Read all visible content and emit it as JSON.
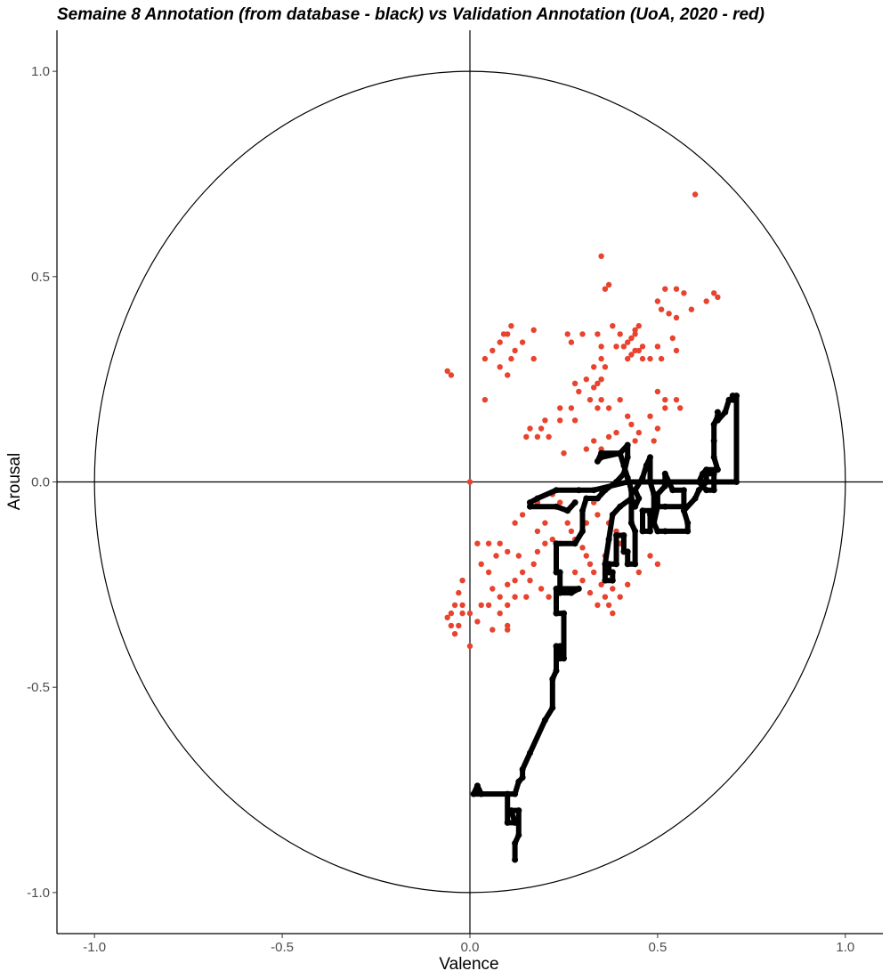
{
  "chart_data": {
    "type": "scatter",
    "title": "Semaine 8 Annotation (from database - black) vs Validation Annotation (UoA, 2020 - red)",
    "xlabel": "Valence",
    "ylabel": "Arousal",
    "xlim": [
      -1.1,
      1.1
    ],
    "ylim": [
      -1.1,
      1.1
    ],
    "x_ticks": [
      -1.0,
      -0.5,
      0.0,
      0.5,
      1.0
    ],
    "x_tick_labels": [
      "-1.0",
      "-0.5",
      "0.0",
      "0.5",
      "1.0"
    ],
    "y_ticks": [
      -1.0,
      -0.5,
      0.0,
      0.5,
      1.0
    ],
    "y_tick_labels": [
      "-1.0",
      "-0.5",
      "0.0",
      "0.5",
      "1.0"
    ],
    "grid": false,
    "legend": "none",
    "reference": {
      "unit_circle": true,
      "zero_lines": true
    },
    "series": [
      {
        "color": "#e8432e",
        "mode": "points",
        "points": [
          [
            0.6,
            0.7
          ],
          [
            0.35,
            0.55
          ],
          [
            0.37,
            0.48
          ],
          [
            0.36,
            0.47
          ],
          [
            0.52,
            0.47
          ],
          [
            0.55,
            0.47
          ],
          [
            0.57,
            0.46
          ],
          [
            0.65,
            0.46
          ],
          [
            0.66,
            0.45
          ],
          [
            0.63,
            0.44
          ],
          [
            0.5,
            0.44
          ],
          [
            0.51,
            0.42
          ],
          [
            0.59,
            0.42
          ],
          [
            0.53,
            0.41
          ],
          [
            0.55,
            0.4
          ],
          [
            0.45,
            0.38
          ],
          [
            0.44,
            0.37
          ],
          [
            0.44,
            0.36
          ],
          [
            0.43,
            0.35
          ],
          [
            0.42,
            0.34
          ],
          [
            0.41,
            0.33
          ],
          [
            0.46,
            0.33
          ],
          [
            0.45,
            0.32
          ],
          [
            0.44,
            0.32
          ],
          [
            0.43,
            0.31
          ],
          [
            0.42,
            0.3
          ],
          [
            0.46,
            0.3
          ],
          [
            0.39,
            0.33
          ],
          [
            0.38,
            0.38
          ],
          [
            0.4,
            0.36
          ],
          [
            0.34,
            0.36
          ],
          [
            0.3,
            0.36
          ],
          [
            0.26,
            0.36
          ],
          [
            0.27,
            0.34
          ],
          [
            0.35,
            0.33
          ],
          [
            0.35,
            0.3
          ],
          [
            0.33,
            0.28
          ],
          [
            0.36,
            0.28
          ],
          [
            0.35,
            0.25
          ],
          [
            0.34,
            0.24
          ],
          [
            0.33,
            0.23
          ],
          [
            0.31,
            0.25
          ],
          [
            0.28,
            0.24
          ],
          [
            0.29,
            0.22
          ],
          [
            0.32,
            0.2
          ],
          [
            0.35,
            0.2
          ],
          [
            0.37,
            0.18
          ],
          [
            0.34,
            0.18
          ],
          [
            0.4,
            0.2
          ],
          [
            0.48,
            0.3
          ],
          [
            0.5,
            0.33
          ],
          [
            0.51,
            0.3
          ],
          [
            0.54,
            0.35
          ],
          [
            0.55,
            0.32
          ],
          [
            0.5,
            0.22
          ],
          [
            0.52,
            0.2
          ],
          [
            0.55,
            0.2
          ],
          [
            0.56,
            0.18
          ],
          [
            0.52,
            0.18
          ],
          [
            0.48,
            0.16
          ],
          [
            0.42,
            0.16
          ],
          [
            0.43,
            0.14
          ],
          [
            0.45,
            0.12
          ],
          [
            0.44,
            0.1
          ],
          [
            0.49,
            0.1
          ],
          [
            0.5,
            0.13
          ],
          [
            0.39,
            0.12
          ],
          [
            0.37,
            0.11
          ],
          [
            0.33,
            0.1
          ],
          [
            0.35,
            0.08
          ],
          [
            0.31,
            0.08
          ],
          [
            0.28,
            0.15
          ],
          [
            0.24,
            0.15
          ],
          [
            0.2,
            0.15
          ],
          [
            0.19,
            0.13
          ],
          [
            0.16,
            0.13
          ],
          [
            0.15,
            0.11
          ],
          [
            0.18,
            0.11
          ],
          [
            0.21,
            0.11
          ],
          [
            0.25,
            0.07
          ],
          [
            0.24,
            0.18
          ],
          [
            0.27,
            0.18
          ],
          [
            0.11,
            0.3
          ],
          [
            0.12,
            0.32
          ],
          [
            0.1,
            0.36
          ],
          [
            0.09,
            0.36
          ],
          [
            0.08,
            0.34
          ],
          [
            0.06,
            0.32
          ],
          [
            0.04,
            0.3
          ],
          [
            -0.06,
            0.27
          ],
          [
            -0.05,
            0.26
          ],
          [
            0.04,
            0.2
          ],
          [
            0.17,
            0.3
          ],
          [
            0.08,
            0.28
          ],
          [
            0.1,
            0.26
          ],
          [
            0.14,
            0.34
          ],
          [
            0.17,
            0.37
          ],
          [
            0.11,
            0.38
          ],
          [
            0.0,
            0.0
          ],
          [
            0.0,
            -0.4
          ],
          [
            0.02,
            -0.15
          ],
          [
            0.05,
            -0.15
          ],
          [
            0.03,
            -0.2
          ],
          [
            0.05,
            -0.22
          ],
          [
            0.06,
            -0.26
          ],
          [
            0.08,
            -0.28
          ],
          [
            0.1,
            -0.25
          ],
          [
            0.12,
            -0.24
          ],
          [
            0.14,
            -0.22
          ],
          [
            0.16,
            -0.24
          ],
          [
            0.17,
            -0.2
          ],
          [
            0.18,
            -0.17
          ],
          [
            0.2,
            -0.15
          ],
          [
            0.22,
            -0.14
          ],
          [
            0.24,
            -0.15
          ],
          [
            0.27,
            -0.12
          ],
          [
            0.28,
            -0.14
          ],
          [
            0.3,
            -0.16
          ],
          [
            0.31,
            -0.18
          ],
          [
            0.32,
            -0.2
          ],
          [
            0.33,
            -0.22
          ],
          [
            0.35,
            -0.25
          ],
          [
            0.36,
            -0.28
          ],
          [
            0.37,
            -0.3
          ],
          [
            0.38,
            -0.26
          ],
          [
            0.34,
            -0.3
          ],
          [
            0.32,
            -0.27
          ],
          [
            0.3,
            -0.24
          ],
          [
            0.28,
            -0.22
          ],
          [
            0.31,
            -0.1
          ],
          [
            0.33,
            -0.05
          ],
          [
            0.35,
            -0.02
          ],
          [
            0.34,
            -0.08
          ],
          [
            0.37,
            -0.1
          ],
          [
            0.39,
            -0.12
          ],
          [
            0.4,
            -0.15
          ],
          [
            0.36,
            -0.18
          ],
          [
            0.3,
            -0.08
          ],
          [
            0.26,
            -0.1
          ],
          [
            0.24,
            -0.05
          ],
          [
            0.22,
            -0.03
          ],
          [
            0.18,
            -0.05
          ],
          [
            0.14,
            -0.08
          ],
          [
            0.12,
            -0.1
          ],
          [
            0.13,
            -0.18
          ],
          [
            0.1,
            -0.17
          ],
          [
            0.19,
            -0.26
          ],
          [
            0.21,
            -0.28
          ],
          [
            0.15,
            -0.28
          ],
          [
            0.12,
            -0.28
          ],
          [
            0.1,
            -0.3
          ],
          [
            0.08,
            -0.32
          ],
          [
            0.06,
            -0.36
          ],
          [
            0.05,
            -0.3
          ],
          [
            0.03,
            -0.3
          ],
          [
            0.02,
            -0.34
          ],
          [
            0.0,
            -0.32
          ],
          [
            -0.02,
            -0.32
          ],
          [
            -0.04,
            -0.3
          ],
          [
            -0.05,
            -0.32
          ],
          [
            -0.06,
            -0.33
          ],
          [
            -0.05,
            -0.35
          ],
          [
            -0.04,
            -0.37
          ],
          [
            -0.03,
            -0.35
          ],
          [
            -0.02,
            -0.3
          ],
          [
            -0.03,
            -0.27
          ],
          [
            -0.02,
            -0.24
          ],
          [
            0.08,
            -0.15
          ],
          [
            0.07,
            -0.18
          ],
          [
            0.1,
            -0.35
          ],
          [
            0.1,
            -0.36
          ],
          [
            0.42,
            -0.2
          ],
          [
            0.48,
            -0.18
          ],
          [
            0.5,
            -0.2
          ],
          [
            0.45,
            -0.22
          ],
          [
            0.42,
            -0.25
          ],
          [
            0.4,
            -0.28
          ],
          [
            0.38,
            -0.32
          ],
          [
            0.18,
            -0.12
          ],
          [
            0.2,
            -0.1
          ]
        ]
      },
      {
        "color": "#000000",
        "mode": "path",
        "points": [
          [
            0.12,
            -0.92
          ],
          [
            0.12,
            -0.88
          ],
          [
            0.13,
            -0.86
          ],
          [
            0.13,
            -0.8
          ],
          [
            0.11,
            -0.8
          ],
          [
            0.12,
            -0.83
          ],
          [
            0.1,
            -0.83
          ],
          [
            0.1,
            -0.76
          ],
          [
            0.03,
            -0.76
          ],
          [
            0.02,
            -0.74
          ],
          [
            0.01,
            -0.76
          ],
          [
            0.12,
            -0.76
          ],
          [
            0.13,
            -0.73
          ],
          [
            0.14,
            -0.72
          ],
          [
            0.14,
            -0.7
          ],
          [
            0.16,
            -0.66
          ],
          [
            0.2,
            -0.58
          ],
          [
            0.22,
            -0.55
          ],
          [
            0.22,
            -0.48
          ],
          [
            0.23,
            -0.46
          ],
          [
            0.23,
            -0.4
          ],
          [
            0.24,
            -0.4
          ],
          [
            0.24,
            -0.43
          ],
          [
            0.25,
            -0.43
          ],
          [
            0.25,
            -0.32
          ],
          [
            0.23,
            -0.32
          ],
          [
            0.23,
            -0.26
          ],
          [
            0.29,
            -0.26
          ],
          [
            0.27,
            -0.27
          ],
          [
            0.24,
            -0.27
          ],
          [
            0.24,
            -0.22
          ],
          [
            0.23,
            -0.22
          ],
          [
            0.23,
            -0.15
          ],
          [
            0.28,
            -0.15
          ],
          [
            0.3,
            -0.12
          ],
          [
            0.3,
            -0.07
          ],
          [
            0.31,
            -0.04
          ],
          [
            0.34,
            -0.04
          ],
          [
            0.36,
            -0.02
          ],
          [
            0.39,
            0.0
          ],
          [
            0.41,
            0.02
          ],
          [
            0.42,
            0.06
          ],
          [
            0.42,
            0.09
          ],
          [
            0.4,
            0.07
          ],
          [
            0.35,
            0.06
          ],
          [
            0.34,
            0.05
          ],
          [
            0.35,
            0.07
          ],
          [
            0.4,
            0.07
          ],
          [
            0.41,
            0.04
          ],
          [
            0.42,
            0.01
          ],
          [
            0.43,
            -0.02
          ],
          [
            0.43,
            -0.1
          ],
          [
            0.44,
            -0.12
          ],
          [
            0.44,
            -0.2
          ],
          [
            0.42,
            -0.2
          ],
          [
            0.42,
            -0.17
          ],
          [
            0.41,
            -0.17
          ],
          [
            0.41,
            -0.13
          ],
          [
            0.39,
            -0.13
          ],
          [
            0.39,
            -0.2
          ],
          [
            0.37,
            -0.2
          ],
          [
            0.37,
            -0.22
          ],
          [
            0.38,
            -0.22
          ],
          [
            0.38,
            -0.24
          ],
          [
            0.36,
            -0.24
          ],
          [
            0.36,
            -0.2
          ],
          [
            0.37,
            -0.14
          ],
          [
            0.38,
            -0.08
          ],
          [
            0.4,
            -0.06
          ],
          [
            0.43,
            -0.04
          ],
          [
            0.44,
            -0.06
          ],
          [
            0.45,
            -0.04
          ],
          [
            0.44,
            -0.02
          ],
          [
            0.46,
            0.01
          ],
          [
            0.47,
            0.04
          ],
          [
            0.48,
            0.06
          ],
          [
            0.48,
            0.0
          ],
          [
            0.49,
            -0.03
          ],
          [
            0.49,
            -0.07
          ],
          [
            0.46,
            -0.07
          ],
          [
            0.46,
            -0.12
          ],
          [
            0.48,
            -0.12
          ],
          [
            0.48,
            -0.08
          ],
          [
            0.5,
            -0.06
          ],
          [
            0.5,
            -0.03
          ],
          [
            0.52,
            -0.01
          ],
          [
            0.52,
            0.02
          ],
          [
            0.53,
            0.0
          ],
          [
            0.54,
            -0.02
          ],
          [
            0.57,
            -0.02
          ],
          [
            0.57,
            -0.06
          ],
          [
            0.52,
            -0.06
          ],
          [
            0.5,
            -0.06
          ],
          [
            0.49,
            -0.1
          ],
          [
            0.5,
            -0.12
          ],
          [
            0.52,
            -0.12
          ],
          [
            0.58,
            -0.12
          ],
          [
            0.58,
            -0.1
          ],
          [
            0.57,
            -0.07
          ],
          [
            0.6,
            -0.04
          ],
          [
            0.61,
            -0.02
          ],
          [
            0.63,
            0.0
          ],
          [
            0.63,
            0.02
          ],
          [
            0.65,
            0.02
          ],
          [
            0.65,
            -0.02
          ],
          [
            0.63,
            -0.02
          ],
          [
            0.61,
            0.0
          ],
          [
            0.62,
            0.02
          ],
          [
            0.63,
            0.03
          ],
          [
            0.66,
            0.03
          ],
          [
            0.65,
            0.06
          ],
          [
            0.65,
            0.1
          ],
          [
            0.65,
            0.14
          ],
          [
            0.66,
            0.16
          ],
          [
            0.66,
            0.17
          ],
          [
            0.66,
            0.15
          ],
          [
            0.68,
            0.17
          ],
          [
            0.69,
            0.2
          ],
          [
            0.7,
            0.2
          ],
          [
            0.7,
            0.21
          ],
          [
            0.71,
            0.21
          ],
          [
            0.71,
            0.0
          ],
          [
            0.62,
            0.0
          ],
          [
            0.42,
            0.0
          ],
          [
            0.33,
            -0.02
          ],
          [
            0.29,
            -0.02
          ],
          [
            0.23,
            -0.02
          ],
          [
            0.18,
            -0.04
          ],
          [
            0.16,
            -0.05
          ],
          [
            0.16,
            -0.06
          ],
          [
            0.23,
            -0.06
          ],
          [
            0.26,
            -0.07
          ],
          [
            0.28,
            -0.05
          ]
        ]
      }
    ]
  }
}
